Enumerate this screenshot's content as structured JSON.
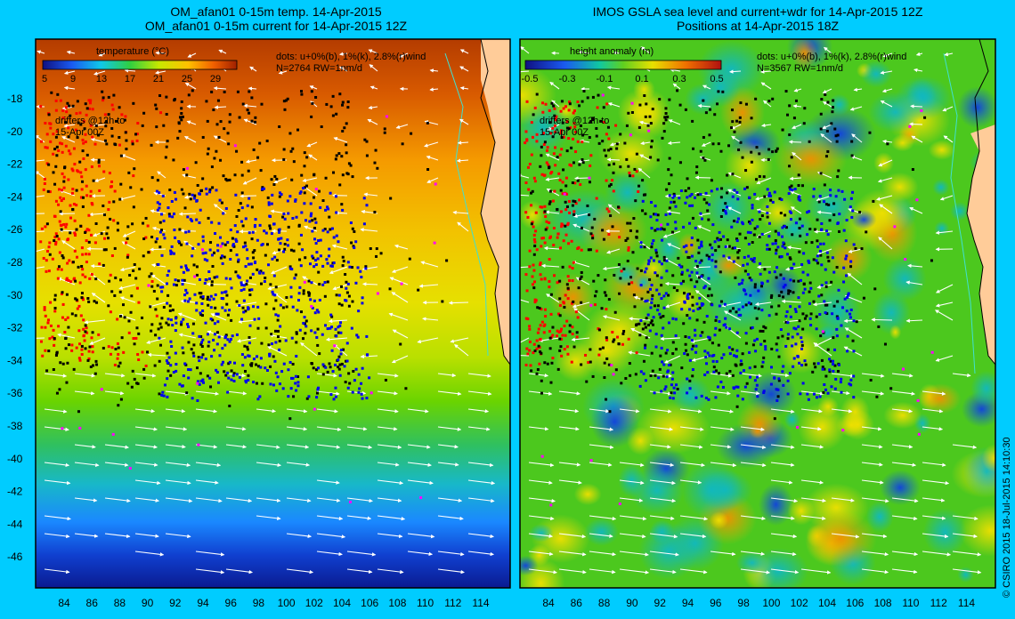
{
  "left_panel": {
    "title_line1": "OM_afan01 0-15m temp. 14-Apr-2015",
    "title_line2": "OM_afan01 0-15m current for 14-Apr-2015 12Z",
    "colorbar_label": "temperature (°C)",
    "colorbar_ticks": [
      "5",
      "9",
      "13",
      "17",
      "21",
      "25",
      "29"
    ],
    "dots_legend_line1": "dots: u+0%(b), 1%(k), 2.8%(r)wind",
    "dots_legend_line2": "N=2764 RW=1nm/d",
    "drifters_line1": "drifters @12h to",
    "drifters_line2": "15-Apr 00Z"
  },
  "right_panel": {
    "title_line1": "IMOS GSLA sea level and current+wdr for 14-Apr-2015 12Z",
    "title_line2": "Positions at 14-Apr-2015 18Z",
    "colorbar_label": "height anomaly (m)",
    "colorbar_ticks": [
      "-0.5",
      "-0.3",
      "-0.1",
      "0.1",
      "0.3",
      "0.5"
    ],
    "dots_legend_line1": "dots: u+0%(b), 1%(k), 2.8%(r)wind",
    "dots_legend_line2": "N=3567 RW=1nm/d",
    "drifters_line1": "drifters @12h to",
    "drifters_line2": "15-Apr 00Z"
  },
  "axes": {
    "lat_ticks": [
      "-18",
      "-20",
      "-22",
      "-24",
      "-26",
      "-28",
      "-30",
      "-32",
      "-34",
      "-36",
      "-38",
      "-40",
      "-42",
      "-44",
      "-46"
    ],
    "lon_ticks": [
      "84",
      "86",
      "88",
      "90",
      "92",
      "94",
      "96",
      "98",
      "100",
      "102",
      "104",
      "106",
      "108",
      "110",
      "112",
      "114"
    ]
  },
  "credit": "© CSIRO 2015   18-Jul-2015 14:10:30",
  "colors": {
    "background": "#00ccff",
    "land": "#ffcc99",
    "dot_blue": "#0000ee",
    "dot_black": "#000000",
    "dot_red": "#ff0000",
    "dot_magenta": "#ff00ff"
  }
}
